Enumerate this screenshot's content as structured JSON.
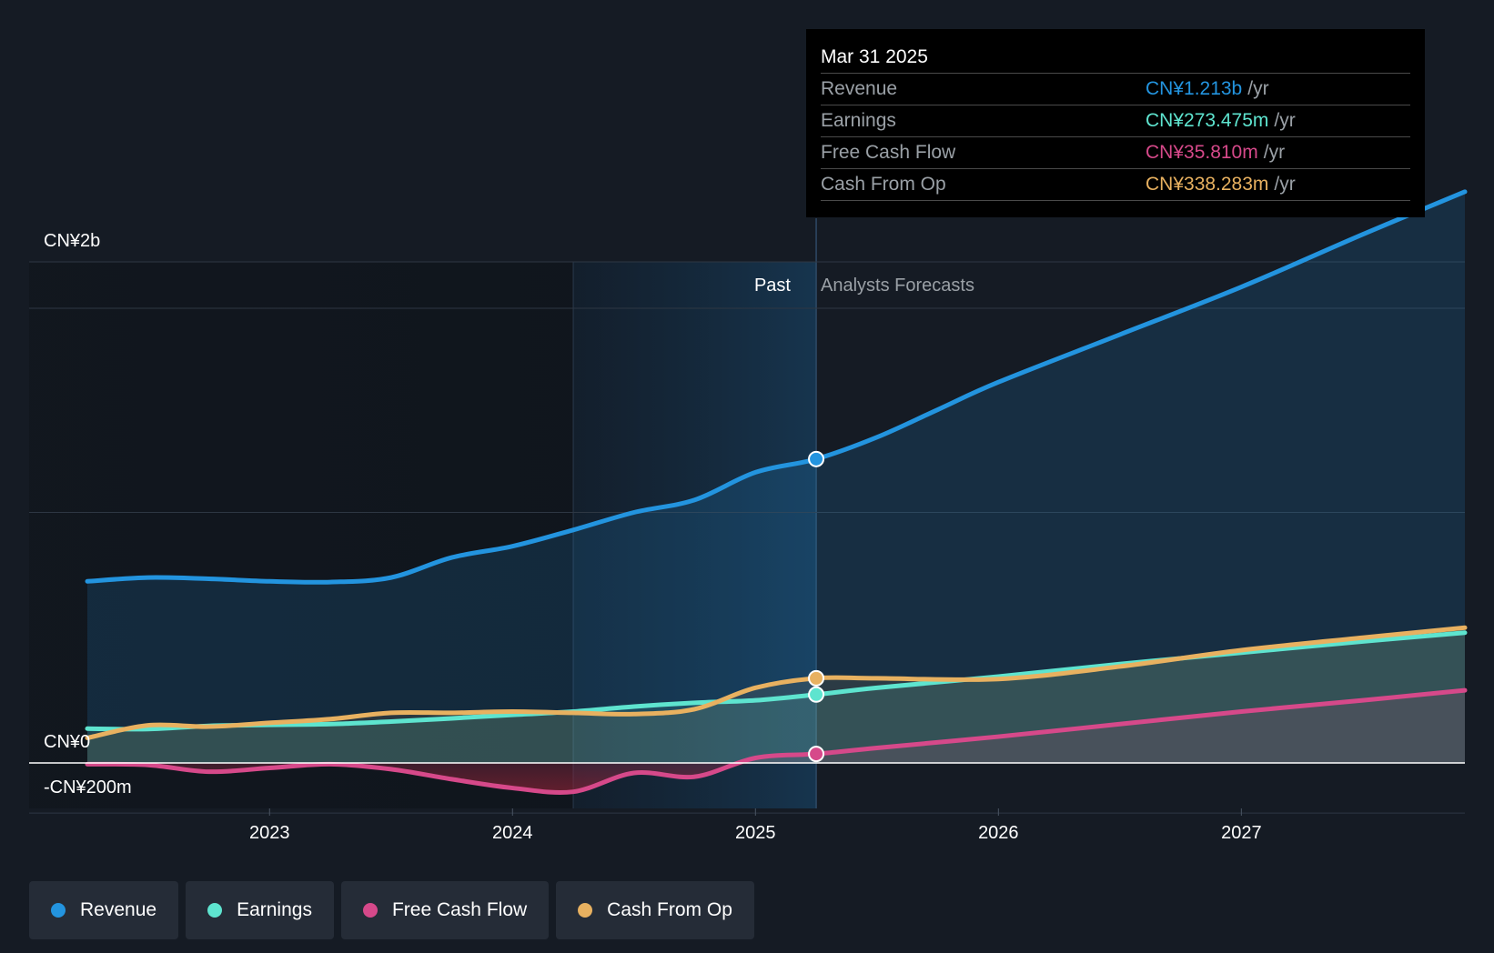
{
  "chart_data": {
    "type": "line",
    "title": "",
    "xlabel": "",
    "ylabel": "",
    "x_ticks": [
      "2023",
      "2024",
      "2025",
      "2026",
      "2027"
    ],
    "y_tick_labels": [
      "CN¥2b",
      "CN¥0",
      "-CN¥200m"
    ],
    "xlim": [
      2022.25,
      2027.92
    ],
    "ylim": [
      -200,
      2200
    ],
    "divider_x": 2025.25,
    "past_highlight_start": 2024.25,
    "past_label": "Past",
    "forecast_label": "Analysts Forecasts",
    "legend_position": "bottom-left",
    "series": [
      {
        "name": "Revenue",
        "color": "#2394df",
        "x": [
          2022.25,
          2022.5,
          2022.75,
          2023.0,
          2023.25,
          2023.5,
          2023.75,
          2024.0,
          2024.25,
          2024.5,
          2024.75,
          2025.0,
          2025.25,
          2025.5,
          2025.75,
          2026.0,
          2026.5,
          2027.0,
          2027.5,
          2027.92
        ],
        "values": [
          725,
          740,
          735,
          725,
          722,
          740,
          820,
          865,
          930,
          1000,
          1050,
          1160,
          1213,
          1300,
          1410,
          1520,
          1710,
          1900,
          2110,
          2280
        ]
      },
      {
        "name": "Earnings",
        "color": "#5ee4cf",
        "x": [
          2022.25,
          2022.5,
          2022.75,
          2023.0,
          2023.25,
          2023.5,
          2023.75,
          2024.0,
          2024.25,
          2024.5,
          2024.75,
          2025.0,
          2025.25,
          2025.5,
          2026.0,
          2026.5,
          2027.0,
          2027.5,
          2027.92
        ],
        "values": [
          137,
          135,
          148,
          152,
          155,
          165,
          178,
          192,
          205,
          225,
          240,
          250,
          273,
          300,
          345,
          395,
          440,
          485,
          520
        ]
      },
      {
        "name": "Free Cash Flow",
        "color": "#d6498a",
        "x": [
          2022.25,
          2022.5,
          2022.75,
          2023.0,
          2023.25,
          2023.5,
          2023.75,
          2024.0,
          2024.25,
          2024.5,
          2024.75,
          2025.0,
          2025.25,
          2025.5,
          2026.0,
          2026.5,
          2027.0,
          2027.5,
          2027.92
        ],
        "values": [
          -5,
          -8,
          -35,
          -20,
          -5,
          -25,
          -65,
          -100,
          -115,
          -40,
          -55,
          20,
          36,
          60,
          105,
          155,
          205,
          250,
          290
        ]
      },
      {
        "name": "Cash From Op",
        "color": "#e8b160",
        "x": [
          2022.25,
          2022.5,
          2022.75,
          2023.0,
          2023.25,
          2023.5,
          2023.75,
          2024.0,
          2024.25,
          2024.5,
          2024.75,
          2025.0,
          2025.25,
          2025.5,
          2026.0,
          2026.5,
          2027.0,
          2027.5,
          2027.92
        ],
        "values": [
          100,
          150,
          145,
          160,
          175,
          200,
          200,
          205,
          200,
          195,
          215,
          300,
          338,
          338,
          335,
          385,
          450,
          500,
          540
        ]
      }
    ],
    "highlight_points": [
      {
        "series": "Revenue",
        "x": 2025.25,
        "value": 1213
      },
      {
        "series": "Earnings",
        "x": 2025.25,
        "value": 273
      },
      {
        "series": "Free Cash Flow",
        "x": 2025.25,
        "value": 36
      },
      {
        "series": "Cash From Op",
        "x": 2025.25,
        "value": 338
      }
    ]
  },
  "tooltip": {
    "date": "Mar 31 2025",
    "rows": [
      {
        "name": "Revenue",
        "value": "CN¥1.213b",
        "unit": "/yr",
        "color": "#2394df"
      },
      {
        "name": "Earnings",
        "value": "CN¥273.475m",
        "unit": "/yr",
        "color": "#5ee4cf"
      },
      {
        "name": "Free Cash Flow",
        "value": "CN¥35.810m",
        "unit": "/yr",
        "color": "#d6498a"
      },
      {
        "name": "Cash From Op",
        "value": "CN¥338.283m",
        "unit": "/yr",
        "color": "#e8b160"
      }
    ]
  },
  "legend": [
    {
      "label": "Revenue",
      "color": "#2394df"
    },
    {
      "label": "Earnings",
      "color": "#5ee4cf"
    },
    {
      "label": "Free Cash Flow",
      "color": "#d6498a"
    },
    {
      "label": "Cash From Op",
      "color": "#e8b160"
    }
  ]
}
